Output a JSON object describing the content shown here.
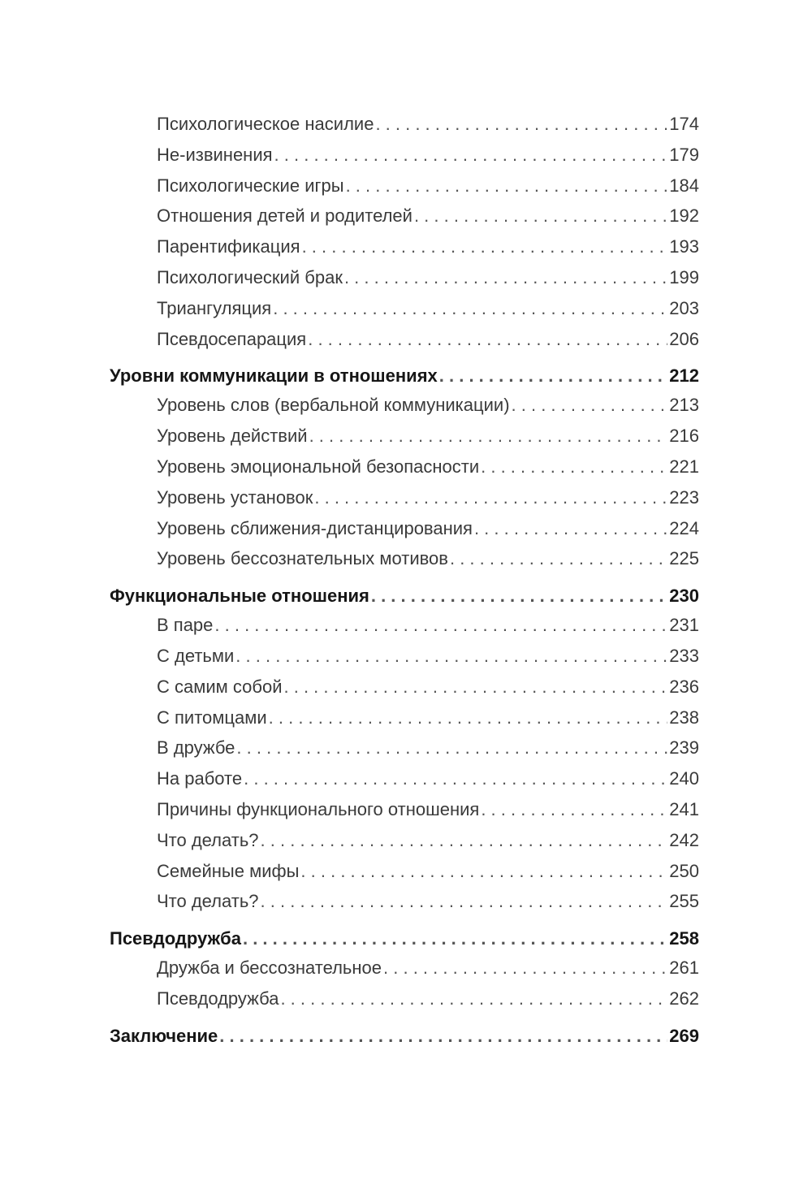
{
  "entries": [
    {
      "level": "sub",
      "title": "Психологическое насилие",
      "page": "174"
    },
    {
      "level": "sub",
      "title": "Не-извинения",
      "page": "179"
    },
    {
      "level": "sub",
      "title": "Психологические игры",
      "page": "184"
    },
    {
      "level": "sub",
      "title": "Отношения детей и родителей",
      "page": "192"
    },
    {
      "level": "sub",
      "title": "Парентификация",
      "page": "193"
    },
    {
      "level": "sub",
      "title": "Психологический брак",
      "page": "199"
    },
    {
      "level": "sub",
      "title": "Триангуляция",
      "page": "203"
    },
    {
      "level": "sub",
      "title": "Псевдосепарация",
      "page": "206"
    },
    {
      "level": "head",
      "title": "Уровни коммуникации в отношениях",
      "page": "212"
    },
    {
      "level": "sub",
      "title": "Уровень слов (вербальной коммуникации)",
      "page": "213"
    },
    {
      "level": "sub",
      "title": "Уровень действий",
      "page": "216"
    },
    {
      "level": "sub",
      "title": "Уровень эмоциональной безопасности",
      "page": "221"
    },
    {
      "level": "sub",
      "title": "Уровень установок",
      "page": "223"
    },
    {
      "level": "sub",
      "title": "Уровень сближения-дистанцирования",
      "page": "224"
    },
    {
      "level": "sub",
      "title": "Уровень бессознательных мотивов",
      "page": "225"
    },
    {
      "level": "head",
      "title": "Функциональные отношения",
      "page": "230"
    },
    {
      "level": "sub",
      "title": "В паре",
      "page": "231"
    },
    {
      "level": "sub",
      "title": "С детьми",
      "page": "233"
    },
    {
      "level": "sub",
      "title": "С самим собой",
      "page": "236"
    },
    {
      "level": "sub",
      "title": "С питомцами",
      "page": "238"
    },
    {
      "level": "sub",
      "title": "В дружбе",
      "page": "239"
    },
    {
      "level": "sub",
      "title": "На работе",
      "page": "240"
    },
    {
      "level": "sub",
      "title": "Причины функционального отношения",
      "page": "241"
    },
    {
      "level": "sub",
      "title": "Что делать?",
      "page": "242"
    },
    {
      "level": "sub",
      "title": "Семейные мифы",
      "page": "250"
    },
    {
      "level": "sub",
      "title": "Что делать?",
      "page": "255"
    },
    {
      "level": "head",
      "title": "Псевдодружба",
      "page": "258"
    },
    {
      "level": "sub",
      "title": "Дружба и бессознательное",
      "page": "261"
    },
    {
      "level": "sub",
      "title": "Псевдодружба",
      "page": "262"
    },
    {
      "level": "head",
      "title": "Заключение",
      "page": "269"
    }
  ]
}
